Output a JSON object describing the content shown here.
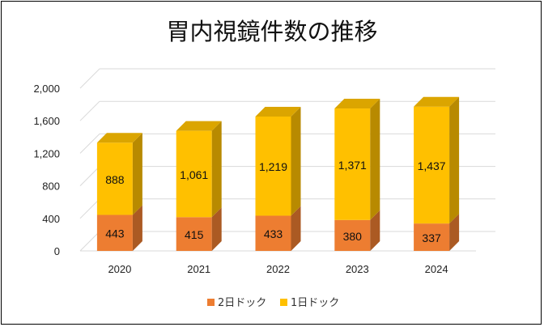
{
  "chart_data": {
    "type": "bar",
    "stacked": true,
    "title": "胃内視鏡件数の推移",
    "categories": [
      "2020",
      "2021",
      "2022",
      "2023",
      "2024"
    ],
    "series": [
      {
        "name": "2日ドック",
        "values": [
          443,
          415,
          433,
          380,
          337
        ],
        "labels": [
          "443",
          "415",
          "433",
          "380",
          "337"
        ],
        "color": "#ED7D31"
      },
      {
        "name": "1日ドック",
        "values": [
          888,
          1061,
          1219,
          1371,
          1437
        ],
        "labels": [
          "888",
          "1,061",
          "1,219",
          "1,371",
          "1,437"
        ],
        "color": "#FFC000"
      }
    ],
    "ylim": [
      0,
      2000
    ],
    "yticks": [
      0,
      400,
      800,
      1200,
      1600,
      2000
    ],
    "ytick_labels": [
      "0",
      "400",
      "800",
      "1,200",
      "1,600",
      "2,000"
    ],
    "xlabel": "",
    "ylabel": "",
    "grid": true,
    "legend_position": "bottom",
    "style": "3d-column"
  }
}
